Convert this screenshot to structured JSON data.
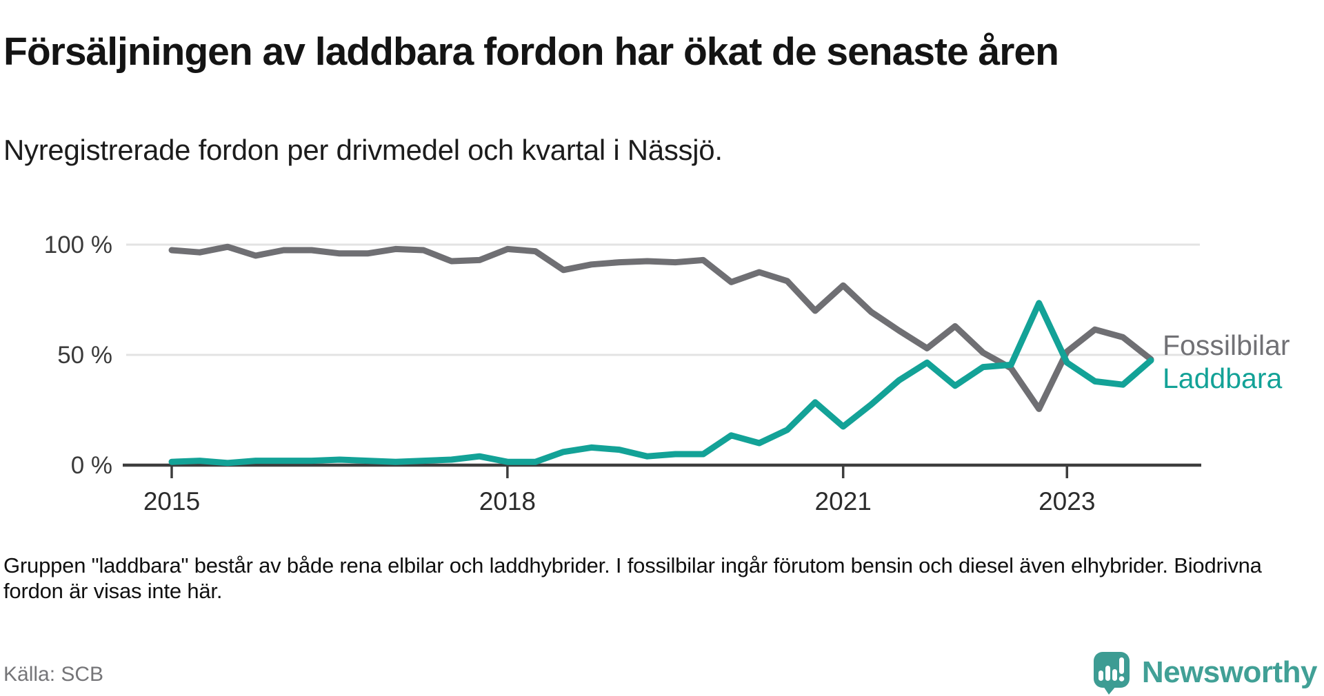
{
  "header": {
    "title": "Försäljningen av laddbara fordon har ökat de senaste åren",
    "subtitle": "Nyregistrerade fordon per drivmedel och kvartal i Nässjö."
  },
  "chart_data": {
    "type": "line",
    "title": "Nyregistrerade fordon per drivmedel och kvartal i Nässjö",
    "x_unit": "quarter",
    "categories": [
      "2015 Q1",
      "2015 Q2",
      "2015 Q3",
      "2015 Q4",
      "2016 Q1",
      "2016 Q2",
      "2016 Q3",
      "2016 Q4",
      "2017 Q1",
      "2017 Q2",
      "2017 Q3",
      "2017 Q4",
      "2018 Q1",
      "2018 Q2",
      "2018 Q3",
      "2018 Q4",
      "2019 Q1",
      "2019 Q2",
      "2019 Q3",
      "2019 Q4",
      "2020 Q1",
      "2020 Q2",
      "2020 Q3",
      "2020 Q4",
      "2021 Q1",
      "2021 Q2",
      "2021 Q3",
      "2021 Q4",
      "2022 Q1",
      "2022 Q2",
      "2022 Q3",
      "2022 Q4",
      "2023 Q1",
      "2023 Q2",
      "2023 Q3",
      "2023 Q4"
    ],
    "series": [
      {
        "name": "Fossilbilar",
        "color": "#6f6f73",
        "values": [
          97.5,
          96.5,
          99,
          95,
          97.5,
          97.5,
          96,
          96,
          98,
          97.5,
          92.5,
          93,
          98,
          97,
          88.5,
          91,
          92,
          92.5,
          92,
          93,
          83,
          87.5,
          83.5,
          70,
          81.5,
          69.5,
          61,
          53,
          63,
          51,
          44,
          25.5,
          51.5,
          61.5,
          58,
          48
        ]
      },
      {
        "name": "Laddbara",
        "color": "#13a297",
        "values": [
          1.5,
          2,
          1,
          2,
          2,
          2,
          2.5,
          2,
          1.5,
          2,
          2.5,
          4,
          1.5,
          1.5,
          6,
          8,
          7,
          4,
          5,
          5,
          13.5,
          10,
          16,
          28.5,
          17.5,
          27.5,
          38.5,
          46.5,
          36,
          44.5,
          45.5,
          73.5,
          46.5,
          38,
          36.5,
          47.5
        ]
      }
    ],
    "unit": "%",
    "ylim": [
      0,
      100
    ],
    "y_tick_labels": [
      {
        "label": "100 %",
        "value": 100
      },
      {
        "label": "50 %",
        "value": 50
      },
      {
        "label": "0 %",
        "value": 0
      }
    ],
    "x_tick_labels": [
      {
        "label": "2015",
        "quarter_index": 0
      },
      {
        "label": "2018",
        "quarter_index": 12
      },
      {
        "label": "2021",
        "quarter_index": 24
      },
      {
        "label": "2023",
        "quarter_index": 32
      }
    ],
    "grid": "horizontal",
    "legend_position": "right-of-line-end"
  },
  "legend": {
    "fossil_label": "Fossilbilar",
    "laddbara_label": "Laddbara"
  },
  "footer": {
    "note": "Gruppen \"laddbara\" består av både rena elbilar och laddhybrider. I fossilbilar ingår förutom bensin och diesel även elhybrider. Biodrivna fordon är visas inte här.",
    "source": "Källa: SCB"
  },
  "logo": {
    "text": "Newsworthy"
  },
  "colors": {
    "fossil_line": "#6f6f73",
    "laddbara_line": "#13a297",
    "gridline": "#e3e3e3",
    "axis": "#3d3d3d",
    "axis_label": "#3a3a3a",
    "logo_teal": "#3d9c93"
  }
}
